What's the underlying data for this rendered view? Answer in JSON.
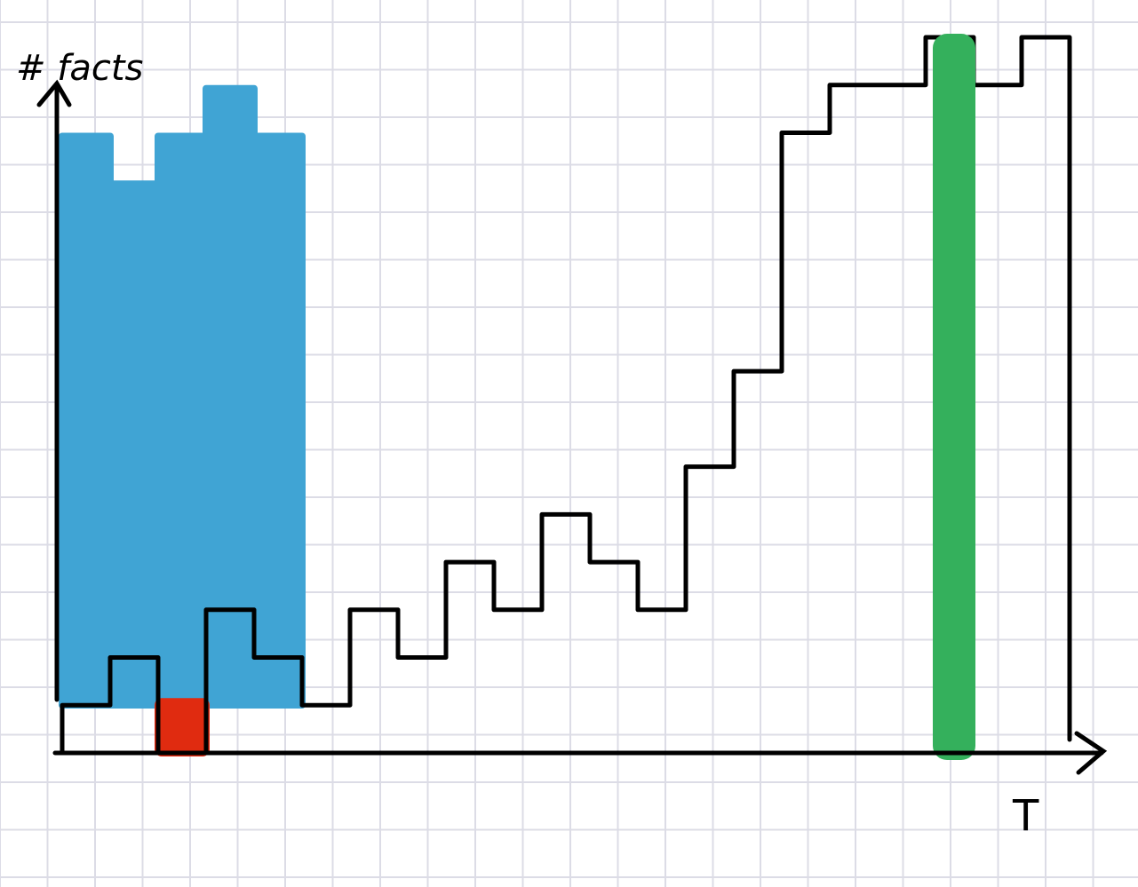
{
  "chart_data": {
    "type": "bar",
    "background": "graph-paper",
    "ylabel": "# facts",
    "xlabel": "T",
    "ylim": [
      0,
      15
    ],
    "bar_color": "#ffffff",
    "bar_outline_color": "#000000",
    "highlight_colors": {
      "blue_region": "#40a4d4",
      "red_bar": "#e02b10",
      "green_bar": "#34b05c"
    },
    "values": [
      1,
      2,
      0,
      3,
      2,
      1,
      3,
      2,
      4,
      3,
      5,
      4,
      3,
      6,
      8,
      13,
      14,
      14,
      15,
      14,
      15
    ],
    "blue_region_values": [
      13,
      12,
      13,
      14,
      13
    ],
    "red_bar_value": 1,
    "green_bar_index": 18
  }
}
